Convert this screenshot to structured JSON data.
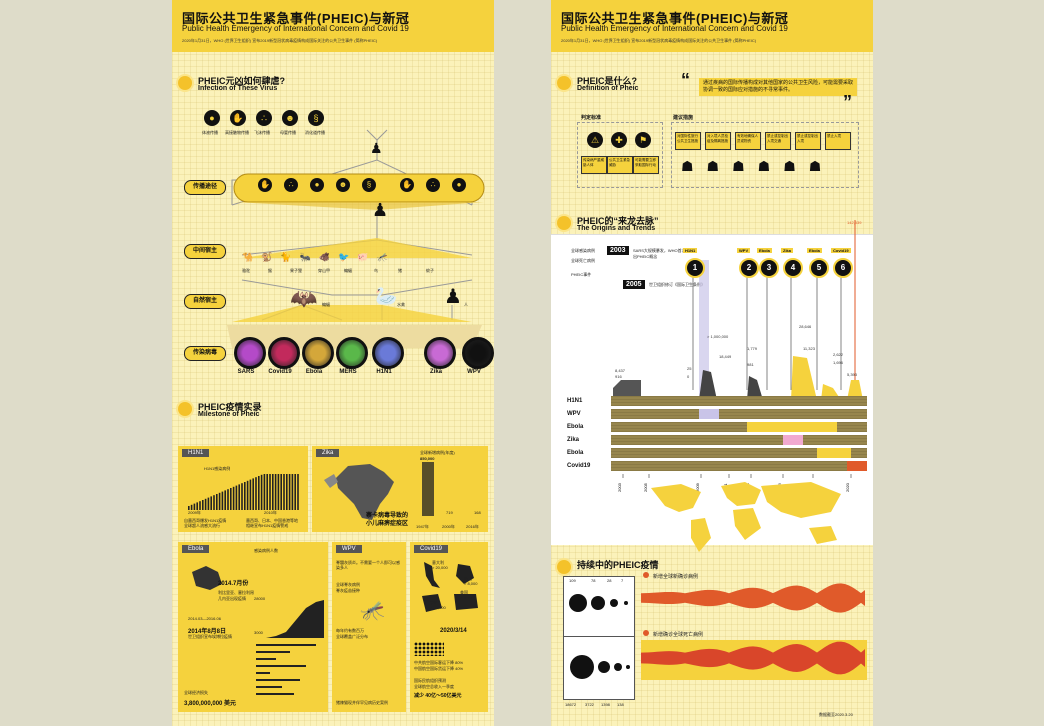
{
  "left": {
    "title": "国际公共卫生紧急事件(PHEIC)与新冠",
    "subtitle": "Public Health Emergency of International Concern and Covid 19",
    "note": "2020年1月31日，WHO (世界卫生组织) 宣布2019新型冠状病毒疫情构成国际关注的公共卫生事件 (简称PHEIC)",
    "section1": {
      "zh": "PHEIC元凶如何肆虐?",
      "en": "Infection of These Virus"
    },
    "routes": [
      "体液传播",
      "高接触物传播",
      "飞沫传播",
      "母婴传播",
      "消化道传播"
    ],
    "rows": {
      "transmission": "传播途径",
      "intermediate": "中间宿主",
      "natural": "自然宿主",
      "disease": "传染病毒"
    },
    "hosts": [
      "骆驼",
      "猴",
      "果子狸",
      "穿山甲",
      "蝙蝠",
      "鸟",
      "猪",
      "蚊子"
    ],
    "host_labels": [
      "蝙蝠",
      "水禽",
      "人"
    ],
    "diseases": [
      "SARS",
      "Covid19",
      "Ebola",
      "MERS",
      "H1N1",
      "Zika",
      "WPV"
    ],
    "disease_colors": [
      "#b44ac8",
      "#c22a5c",
      "#d4a73a",
      "#5ab84a",
      "#6a7ad8",
      "#c86ad4",
      "#111111"
    ],
    "section2": {
      "zh": "PHEIC疫情实录",
      "en": "Milestone of Pheic"
    },
    "panels": {
      "h1n1": {
        "tag": "H1N1",
        "legend": "H1N1感染病例",
        "caption1": "自墨西哥爆发H1N1疫情",
        "caption2": "全球超人流感大流行",
        "caption3": "墨西哥、日本、中国香港等地",
        "caption4": "相继宣布H1N1疫情警戒",
        "year_a": "2009年",
        "year_b": "2010年"
      },
      "zika": {
        "tag": "Zika",
        "legend": "全球新增病例(年度)",
        "top": "850,000",
        "stat": "719",
        "last": "168",
        "years": [
          "1947年",
          "2000年",
          "2016年"
        ],
        "caption": "寨卡病毒导致的",
        "caption2": "小儿麻痹症疫区"
      },
      "ebola": {
        "tag": "Ebola",
        "date1": "2014.7月份",
        "date2": "2014年8月8日",
        "txt1": "利比里亚、塞拉利昂",
        "txt2": "几内亚出现疫情",
        "txt3": "世卫组织宣布埃博拉疫情",
        "loss_label": "全球经济损失",
        "loss": "3,800,000,000 美元",
        "cases_label": "感染病例人数",
        "chart_top": "28000",
        "chart_mid": "3000",
        "period": "2014.03—2016.06"
      },
      "wpv": {
        "tag": "WPV",
        "txt1": "脊髓灰质炎。不需要一个人即可以感染多人",
        "txt2": "全球脊灰病例",
        "txt3": "脊灰疫苗接种",
        "txt4": "每年约有数百万",
        "txt5": "全球覆盖广泛分布",
        "foot": "猪辣猫现并伴罕见病历史案例"
      },
      "covid": {
        "tag": "Covid19",
        "txt1": "意大利",
        "v1": "> 20,000",
        "txt2": "韩国",
        "v2": "> 8,000",
        "txt3": "伊朗",
        "v3": "> 10,000",
        "txt4": "美国",
        "v4": "> 6,000",
        "date": "2020/3/14",
        "econ1": "中共航空国际客运下降 80%",
        "econ2": "中国航空国际货运下降 40%",
        "econ3": "国际民航组织预测",
        "econ4": "全球航空总收入一季度",
        "econ5": "减少 40亿～50亿美元"
      }
    }
  },
  "right": {
    "title": "国际公共卫生紧急事件(PHEIC)与新冠",
    "subtitle": "Public Health Emergency of International Concern and Covid 19",
    "note": "2020年1月31日，WHO (世界卫生组织) 宣布2019新型冠状病毒疫情构成国际关注的公共卫生事件 (简称PHEIC)",
    "section1": {
      "zh": "PHEIC是什么?",
      "en": "Definition of Pheic"
    },
    "quote": "通过疾病的国际传播构成对其他国家的公共卫生风险，可能需要采取协调一致的国际应对措施的不寻常事件。",
    "judge_label": "判定标准",
    "measure_label": "建议措施",
    "judge": [
      "传染病严重威胁人体",
      "公共卫生紧急威胁",
      "可能需要立即采取国际行动"
    ],
    "measures": [
      "对国际性旅行公共卫生措施",
      "对入境人员检疫及隔离措施",
      "有效地确保人员或物资",
      "禁止或控制出入境交通",
      "禁止或控制出入境",
      "禁止入境"
    ],
    "section2": {
      "zh": "PHEIC的“来龙去脉”",
      "en": "The Origins and Trends"
    },
    "legend": [
      "全球感染病例",
      "全球死亡病例",
      "PHEIC事件"
    ],
    "years_box": [
      "2003",
      "2005"
    ],
    "year_notes": [
      "SARS大规模暴发，WHO首次提出PHEIC概念",
      "世卫组织修订《国际卫生条例》"
    ],
    "events": [
      {
        "n": "1",
        "name": "H1N1"
      },
      {
        "n": "2",
        "name": "WPV"
      },
      {
        "n": "3",
        "name": "Ebola"
      },
      {
        "n": "4",
        "name": "Zika"
      },
      {
        "n": "5",
        "name": "Ebola"
      },
      {
        "n": "6",
        "name": "Covid19"
      }
    ],
    "bar_values": [
      "8,437",
      "916",
      "25",
      "0",
      "> 1,000,000",
      "18,449",
      "1,779",
      "981",
      "28,646",
      "11,323",
      "2,622",
      "1,696",
      "142,539",
      "5,393"
    ],
    "peak": "142,539",
    "rows": [
      "H1N1",
      "WPV",
      "Ebola",
      "Zika",
      "Ebola",
      "Covid19"
    ],
    "axis_years": [
      "2003",
      "2005",
      "2009",
      "2011",
      "2014",
      "2016",
      "2018",
      "2020"
    ],
    "map_title": "国际地图",
    "section3": "持续中的PHEIC疫情",
    "sub1": "新增全球新确诊病例",
    "sub2": "新增确诊全球死亡病例",
    "small_labels_top": [
      "109",
      "78",
      "28",
      "7"
    ],
    "small_labels_bottom": [
      "18672",
      "3722",
      "1398",
      "138"
    ],
    "credit": "数据截至2020.3.20"
  }
}
